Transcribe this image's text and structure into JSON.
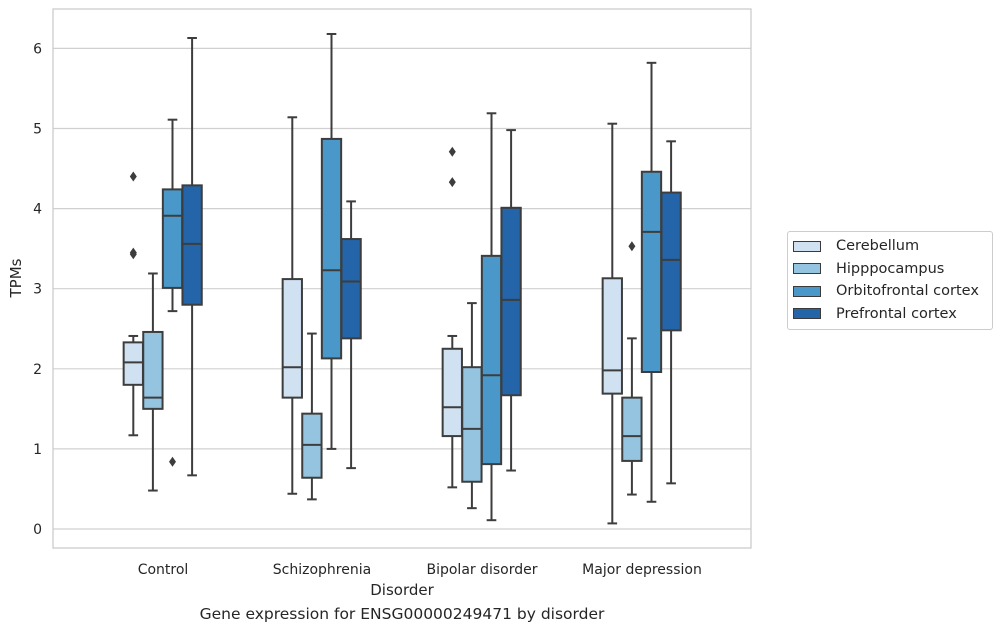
{
  "caption": "Gene expression for ENSG00000249471 by disorder",
  "chart_data": {
    "type": "box",
    "title": "",
    "xlabel": "Disorder",
    "ylabel": "TPMs",
    "ylim": [
      -0.25,
      6.5
    ],
    "yticks": [
      0,
      1,
      2,
      3,
      4,
      5,
      6
    ],
    "grid": "horizontal",
    "legend_position": "right",
    "categories": [
      "Control",
      "Schizophrenia",
      "Bipolar disorder",
      "Major depression"
    ],
    "series": [
      {
        "name": "Cerebellum",
        "color": "#d0e1f2",
        "boxes": [
          {
            "whisker_low": 1.17,
            "q1": 1.8,
            "median": 2.08,
            "q3": 2.33,
            "whisker_high": 2.41,
            "outliers": [
              4.4,
              3.45,
              3.43
            ]
          },
          {
            "whisker_low": 0.44,
            "q1": 1.64,
            "median": 2.02,
            "q3": 3.12,
            "whisker_high": 5.14,
            "outliers": []
          },
          {
            "whisker_low": 0.52,
            "q1": 1.16,
            "median": 1.52,
            "q3": 2.25,
            "whisker_high": 2.41,
            "outliers": [
              4.71,
              4.33
            ]
          },
          {
            "whisker_low": 0.07,
            "q1": 1.69,
            "median": 1.98,
            "q3": 3.13,
            "whisker_high": 5.06,
            "outliers": []
          }
        ]
      },
      {
        "name": "Hipppocampus",
        "color": "#94c4df",
        "boxes": [
          {
            "whisker_low": 0.48,
            "q1": 1.5,
            "median": 1.64,
            "q3": 2.46,
            "whisker_high": 3.19,
            "outliers": []
          },
          {
            "whisker_low": 0.37,
            "q1": 0.64,
            "median": 1.05,
            "q3": 1.44,
            "whisker_high": 2.44,
            "outliers": []
          },
          {
            "whisker_low": 0.26,
            "q1": 0.59,
            "median": 1.25,
            "q3": 2.02,
            "whisker_high": 2.82,
            "outliers": []
          },
          {
            "whisker_low": 0.43,
            "q1": 0.85,
            "median": 1.16,
            "q3": 1.64,
            "whisker_high": 2.38,
            "outliers": [
              3.53
            ]
          }
        ]
      },
      {
        "name": "Orbitofrontal cortex",
        "color": "#4a98c9",
        "boxes": [
          {
            "whisker_low": 2.72,
            "q1": 3.01,
            "median": 3.91,
            "q3": 4.24,
            "whisker_high": 5.11,
            "outliers": [
              0.84
            ]
          },
          {
            "whisker_low": 1.0,
            "q1": 2.13,
            "median": 3.23,
            "q3": 4.87,
            "whisker_high": 6.18,
            "outliers": []
          },
          {
            "whisker_low": 0.11,
            "q1": 0.81,
            "median": 1.92,
            "q3": 3.41,
            "whisker_high": 5.19,
            "outliers": []
          },
          {
            "whisker_low": 0.34,
            "q1": 1.96,
            "median": 3.71,
            "q3": 4.46,
            "whisker_high": 5.82,
            "outliers": []
          }
        ]
      },
      {
        "name": "Prefrontal cortex",
        "color": "#2464a8",
        "boxes": [
          {
            "whisker_low": 0.67,
            "q1": 2.8,
            "median": 3.56,
            "q3": 4.29,
            "whisker_high": 6.13,
            "outliers": []
          },
          {
            "whisker_low": 0.76,
            "q1": 2.38,
            "median": 3.09,
            "q3": 3.62,
            "whisker_high": 4.09,
            "outliers": []
          },
          {
            "whisker_low": 0.73,
            "q1": 1.67,
            "median": 2.86,
            "q3": 4.01,
            "whisker_high": 4.98,
            "outliers": []
          },
          {
            "whisker_low": 0.57,
            "q1": 2.48,
            "median": 3.36,
            "q3": 4.2,
            "whisker_high": 4.84,
            "outliers": []
          }
        ]
      }
    ]
  }
}
